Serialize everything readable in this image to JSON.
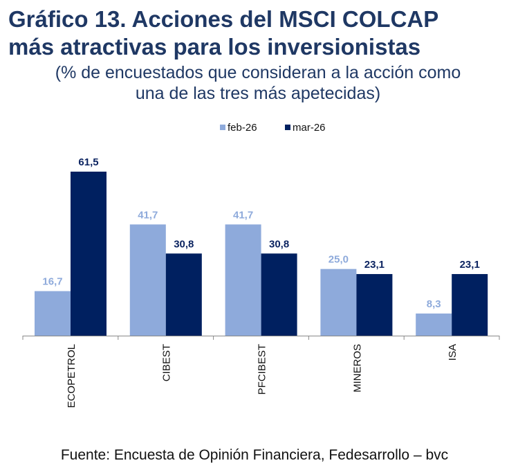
{
  "chart_data": {
    "type": "bar",
    "title": "Gráfico 13. Acciones del MSCI COLCAP más atractivas para los inversionistas",
    "title_lines": [
      "Gráfico 13. Acciones del MSCI COLCAP",
      "más atractivas para los inversionistas"
    ],
    "subtitle_lines": [
      "(% de encuestados que consideran a la acción como",
      "una de las tres más apetecidas)"
    ],
    "categories": [
      "ECOPETROL",
      "CIBEST",
      "PFCIBEST",
      "MINEROS",
      "ISA"
    ],
    "series": [
      {
        "name": "feb-26",
        "color": "#8eaadb",
        "values": [
          16.7,
          41.7,
          41.7,
          25.0,
          8.3
        ],
        "labels": [
          "16,7",
          "41,7",
          "41,7",
          "25,0",
          "8,3"
        ]
      },
      {
        "name": "mar-26",
        "color": "#002060",
        "values": [
          61.5,
          30.8,
          30.8,
          23.1,
          23.1
        ],
        "labels": [
          "61,5",
          "30,8",
          "30,8",
          "23,1",
          "23,1"
        ]
      }
    ],
    "ylim": [
      0,
      65
    ],
    "grid": false,
    "legend": "top-center",
    "source": "Fuente: Encuesta de Opinión Financiera, Fedesarrollo – bvc"
  }
}
